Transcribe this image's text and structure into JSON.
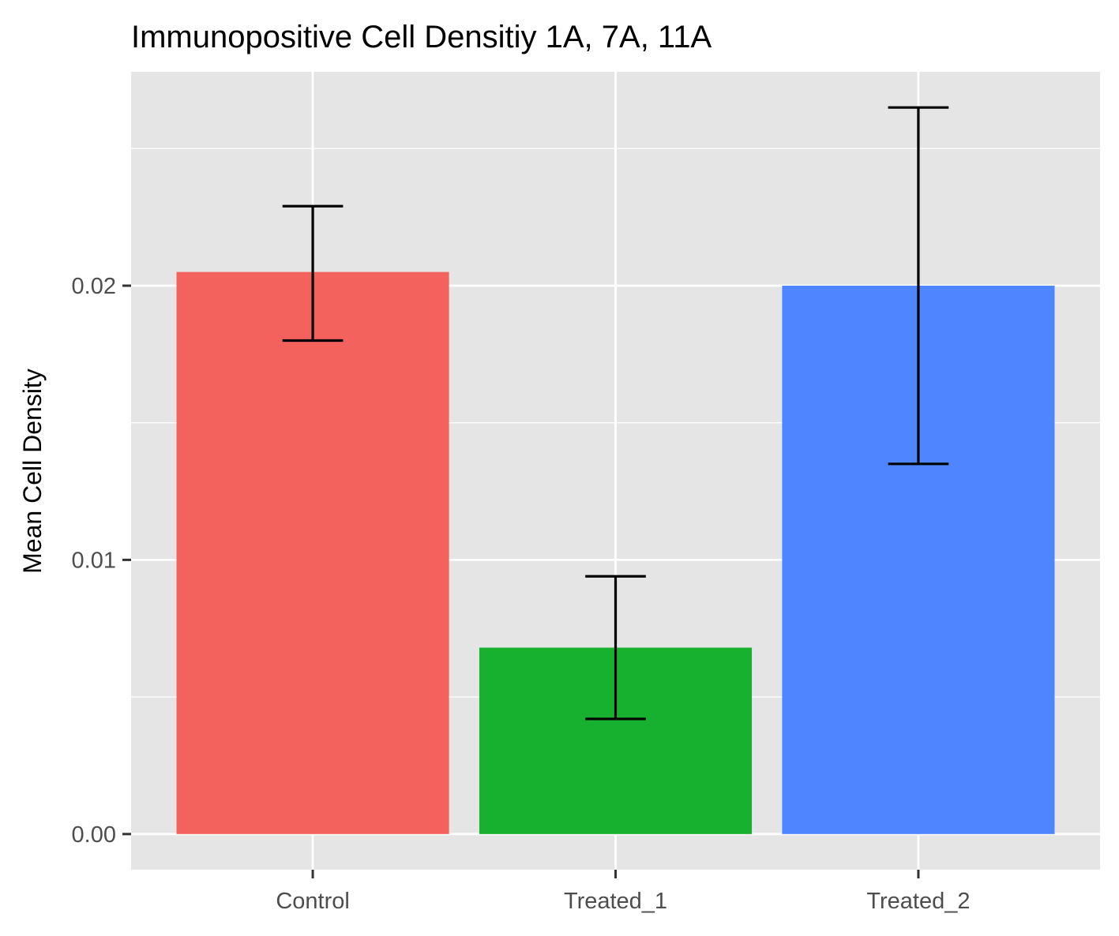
{
  "chart_data": {
    "type": "bar",
    "title": "Immunopositive Cell Densitiy 1A, 7A, 11A",
    "xlabel": "",
    "ylabel": "Mean Cell Density",
    "categories": [
      "Control",
      "Treated_1",
      "Treated_2"
    ],
    "values": [
      0.0205,
      0.0068,
      0.02
    ],
    "error_low": [
      0.018,
      0.0042,
      0.0135
    ],
    "error_high": [
      0.0229,
      0.0094,
      0.0265
    ],
    "colors": [
      "#F3625D",
      "#18B12F",
      "#4F86FF"
    ],
    "ylim": [
      -0.0013,
      0.0278
    ],
    "y_ticks": [
      0.0,
      0.01,
      0.02
    ],
    "y_tick_labels": [
      "0.00",
      "0.01",
      "0.02"
    ],
    "y_minor_ticks": [
      0.005,
      0.015,
      0.025
    ],
    "grid": true,
    "legend": "none",
    "panel_background": "#E5E5E5",
    "grid_color": "#FFFFFF",
    "errorbar_color": "#000000"
  }
}
